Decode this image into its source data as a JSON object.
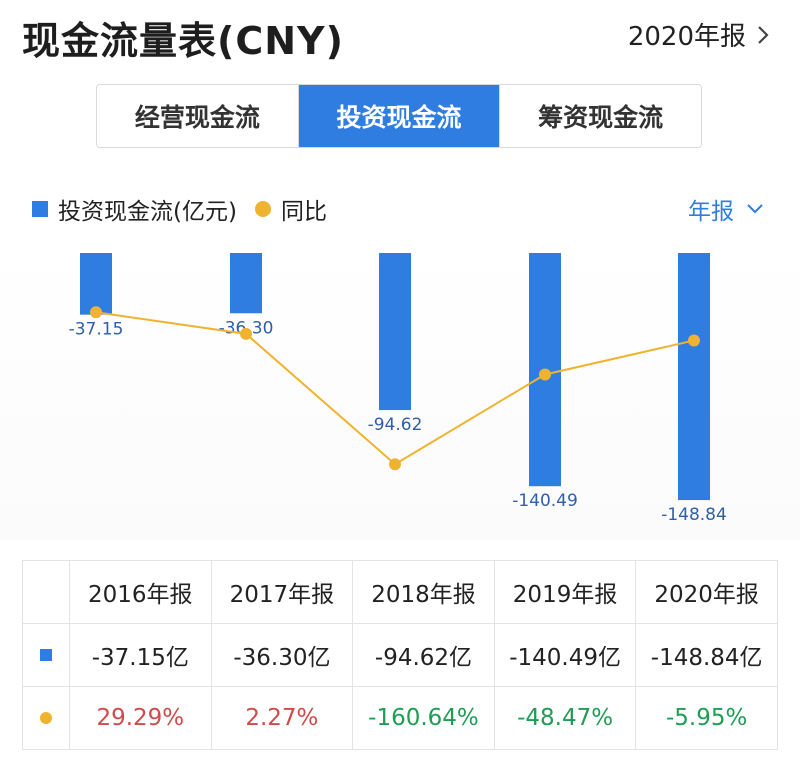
{
  "header": {
    "title": "现金流量表(CNY)",
    "period_link": "2020年报"
  },
  "tabs": [
    {
      "label": "经营现金流",
      "active": false
    },
    {
      "label": "投资现金流",
      "active": true
    },
    {
      "label": "筹资现金流",
      "active": false
    }
  ],
  "legend": {
    "bar_label": "投资现金流(亿元)",
    "line_label": "同比"
  },
  "period_select": "年报",
  "colors": {
    "bar": "#2f7de1",
    "line": "#f0b32f",
    "positive": "#d04a4a",
    "negative": "#1f9d55"
  },
  "chart_data": {
    "type": "bar",
    "categories": [
      "2016年报",
      "2017年报",
      "2018年报",
      "2019年报",
      "2020年报"
    ],
    "series": [
      {
        "name": "投资现金流(亿元)",
        "type": "bar",
        "values": [
          -37.15,
          -36.3,
          -94.62,
          -140.49,
          -148.84
        ],
        "value_labels": [
          "-37.15",
          "-36.30",
          "-94.62",
          "-140.49",
          "-148.84"
        ]
      },
      {
        "name": "同比",
        "type": "line",
        "values": [
          29.29,
          2.27,
          -160.64,
          -48.47,
          -5.95
        ],
        "unit": "%"
      }
    ]
  },
  "table": {
    "headers": [
      "2016年报",
      "2017年报",
      "2018年报",
      "2019年报",
      "2020年报"
    ],
    "bar_row": [
      "-37.15亿",
      "-36.30亿",
      "-94.62亿",
      "-140.49亿",
      "-148.84亿"
    ],
    "line_row": [
      "29.29%",
      "2.27%",
      "-160.64%",
      "-48.47%",
      "-5.95%"
    ]
  }
}
